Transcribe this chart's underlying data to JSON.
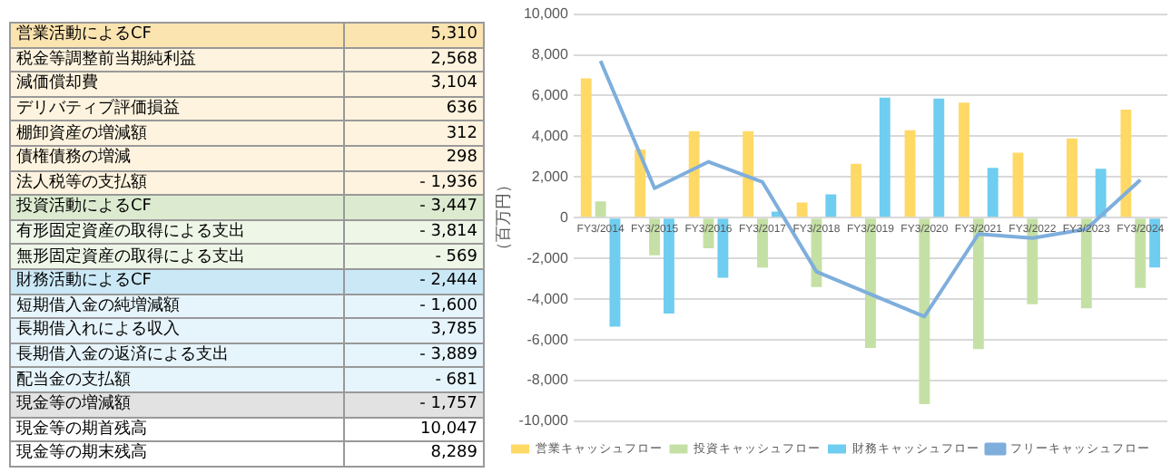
{
  "chart_data": [
    {
      "type": "other",
      "categories": [
        "営業活動によるCF",
        "税金等調整前当期純利益",
        "減価償却費",
        "デリバティブ評価損益",
        "棚卸資産の増減額",
        "債権債務の増減",
        "法人税等の支払額",
        "投資活動によるCF",
        "有形固定資産の取得による支出",
        "無形固定資産の取得による支出",
        "財務活動によるCF",
        "短期借入金の純増減額",
        "長期借入れによる収入",
        "長期借入金の返済による支出",
        "配当金の支払額",
        "現金等の増減額",
        "現金等の期首残高",
        "現金等の期末残高"
      ],
      "value_labels": [
        "5,310",
        "2,568",
        "3,104",
        "636",
        "312",
        "298",
        "- 1,936",
        "- 3,447",
        "- 3,814",
        "- 569",
        "- 2,444",
        "- 1,600",
        "3,785",
        "- 3,889",
        "- 681",
        "- 1,757",
        "10,047",
        "8,289"
      ],
      "colors": [
        "#fce4b0",
        "#fdf3de",
        "#fdf3de",
        "#fdf3de",
        "#fdf3de",
        "#fdf3de",
        "#fdf3de",
        "#dcebd0",
        "#eef6e8",
        "#eef6e8",
        "#cbe8f6",
        "#e6f4fb",
        "#e6f4fb",
        "#e6f4fb",
        "#e6f4fb",
        "#e2e2e2",
        "#ffffff",
        "#ffffff"
      ]
    },
    {
      "type": "bar",
      "categories": [
        "FY3/2014",
        "FY3/2015",
        "FY3/2016",
        "FY3/2017",
        "FY3/2018",
        "FY3/2019",
        "FY3/2020",
        "FY3/2021",
        "FY3/2022",
        "FY3/2023",
        "FY3/2024"
      ],
      "ylabel": "（百万円）",
      "series": [
        {
          "name": "営業キャッシュフロー",
          "color": "#ffd966",
          "values": [
            6850,
            3350,
            4250,
            4250,
            750,
            2650,
            4300,
            5650,
            3200,
            3900,
            5310
          ]
        },
        {
          "name": "投資キャッシュフロー",
          "color": "#c5e0a5",
          "values": [
            800,
            -1850,
            -1500,
            -2450,
            -3400,
            -6400,
            -9150,
            -6450,
            -4250,
            -4450,
            -3447
          ]
        },
        {
          "name": "財務キャッシュフロー",
          "color": "#6fcdf0",
          "values": [
            -5350,
            -4700,
            -2950,
            300,
            1150,
            5900,
            5850,
            2450,
            null,
            2400,
            -2444
          ]
        },
        {
          "name": "フリーキャッシュフロー",
          "type": "line",
          "color": "#7eaedc",
          "values": [
            7700,
            1450,
            2750,
            1750,
            -2650,
            -3750,
            -4850,
            -800,
            -1000,
            -550,
            1863
          ]
        }
      ],
      "ylim": [
        -10000,
        10000
      ],
      "yticks": [
        {
          "value": -10000,
          "label": "-10,000"
        },
        {
          "value": -8000,
          "label": "-8,000"
        },
        {
          "value": -6000,
          "label": "-6,000"
        },
        {
          "value": -4000,
          "label": "-4,000"
        },
        {
          "value": -2000,
          "label": "-2,000"
        },
        0,
        {
          "value": 2000,
          "label": "2,000"
        },
        {
          "value": 4000,
          "label": "4,000"
        },
        {
          "value": 6000,
          "label": "6,000"
        },
        {
          "value": 8000,
          "label": "8,000"
        },
        {
          "value": 10000,
          "label": "10,000"
        }
      ],
      "grid": "y",
      "legend": "bottom",
      "marker": "none",
      "line_style": "solid"
    }
  ]
}
